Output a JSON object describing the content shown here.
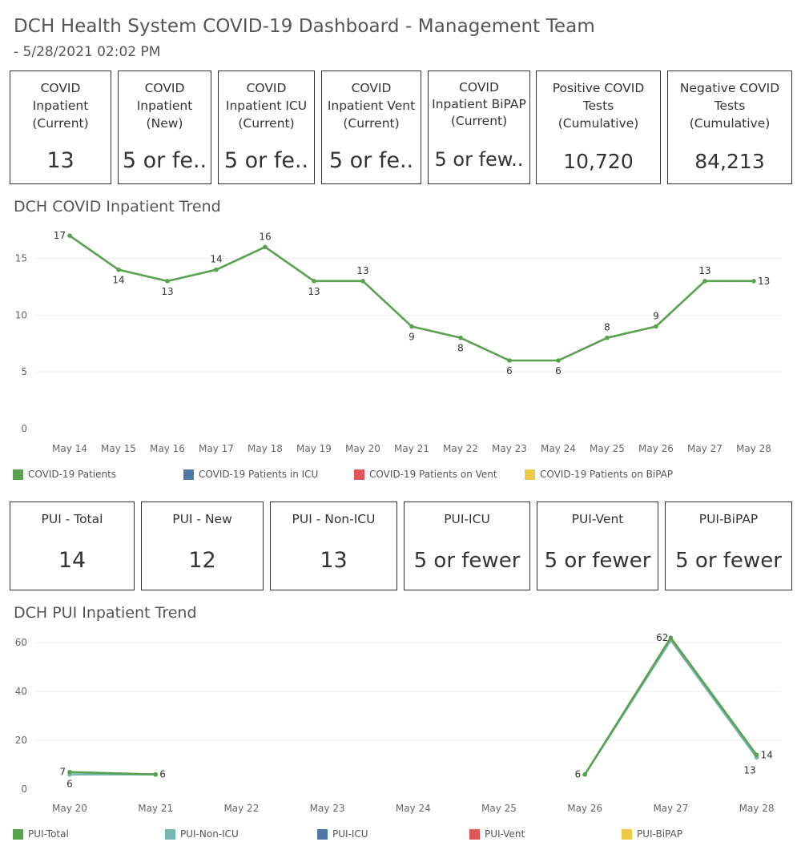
{
  "header": {
    "title": "DCH Health System COVID-19 Dashboard - Management Team",
    "subtitle": "- 5/28/2021 02:02 PM"
  },
  "covid_kpis": [
    {
      "label": "COVID\nInpatient\n(Current)",
      "value": "13"
    },
    {
      "label": "COVID\nInpatient\n(New)",
      "value": "5 or fe.."
    },
    {
      "label": "COVID\nInpatient ICU\n(Current)",
      "value": "5 or fe.."
    },
    {
      "label": "COVID\nInpatient Vent\n(Current)",
      "value": "5 or fe.."
    },
    {
      "label": "COVID\nInpatient BiPAP\n(Current)",
      "value": "5 or few.."
    },
    {
      "label": "Positive COVID\nTests\n(Cumulative)",
      "value": "10,720"
    },
    {
      "label": "Negative COVID\nTests\n(Cumulative)",
      "value": "84,213"
    }
  ],
  "pui_kpis": [
    {
      "label": "PUI - Total",
      "value": "14"
    },
    {
      "label": "PUI - New",
      "value": "12"
    },
    {
      "label": "PUI - Non-ICU",
      "value": "13"
    },
    {
      "label": "PUI-ICU",
      "value": "5 or fewer"
    },
    {
      "label": "PUI-Vent",
      "value": "5 or fewer"
    },
    {
      "label": "PUI-BiPAP",
      "value": "5 or fewer"
    }
  ],
  "chart_data": [
    {
      "type": "line",
      "title": "DCH COVID Inpatient Trend",
      "categories": [
        "May 14",
        "May 15",
        "May 16",
        "May 17",
        "May 18",
        "May 19",
        "May 20",
        "May 21",
        "May 22",
        "May 23",
        "May 24",
        "May 25",
        "May 26",
        "May 27",
        "May 28"
      ],
      "series": [
        {
          "name": "COVID-19 Patients",
          "color": "#59a14f",
          "values": [
            17,
            14,
            13,
            14,
            16,
            13,
            13,
            9,
            8,
            6,
            6,
            8,
            9,
            13,
            13
          ]
        }
      ],
      "legend": [
        {
          "name": "COVID-19 Patients",
          "color": "#59a14f"
        },
        {
          "name": "COVID-19 Patients in ICU",
          "color": "#4e79a7"
        },
        {
          "name": "COVID-19 Patients on Vent",
          "color": "#e15759"
        },
        {
          "name": "COVID-19 Patients on BiPAP",
          "color": "#edc948"
        }
      ],
      "yticks": [
        0,
        5,
        10,
        15
      ],
      "ylim": [
        0,
        18
      ],
      "legend_position": "bottom",
      "grid": true
    },
    {
      "type": "line",
      "title": "DCH PUI Inpatient Trend",
      "categories": [
        "May 20",
        "May 21",
        "May 22",
        "May 23",
        "May 24",
        "May 25",
        "May 26",
        "May 27",
        "May 28"
      ],
      "series": [
        {
          "name": "PUI-Non-ICU",
          "color": "#76b7b2",
          "segments": [
            [
              {
                "i": 0,
                "v": 6
              },
              {
                "i": 1,
                "v": 6
              }
            ],
            [
              {
                "i": 6,
                "v": 6
              },
              {
                "i": 7,
                "v": 61
              },
              {
                "i": 8,
                "v": 13
              }
            ]
          ]
        },
        {
          "name": "PUI-Total",
          "color": "#59a14f",
          "segments": [
            [
              {
                "i": 0,
                "v": 7
              },
              {
                "i": 1,
                "v": 6
              }
            ],
            [
              {
                "i": 6,
                "v": 6
              },
              {
                "i": 7,
                "v": 62
              },
              {
                "i": 8,
                "v": 14
              }
            ]
          ]
        }
      ],
      "labels": [
        {
          "i": 0,
          "v": 7,
          "text": "7",
          "series": "PUI-Total"
        },
        {
          "i": 0,
          "v": 6,
          "text": "6",
          "series": "PUI-Non-ICU"
        },
        {
          "i": 1,
          "v": 6,
          "text": "6",
          "series": "PUI-Total"
        },
        {
          "i": 6,
          "v": 6,
          "text": "6",
          "series": "PUI-Total"
        },
        {
          "i": 7,
          "v": 62,
          "text": "62",
          "series": "PUI-Total"
        },
        {
          "i": 8,
          "v": 14,
          "text": "14",
          "series": "PUI-Total"
        },
        {
          "i": 8,
          "v": 13,
          "text": "13",
          "series": "PUI-Non-ICU"
        }
      ],
      "legend": [
        {
          "name": "PUI-Total",
          "color": "#59a14f"
        },
        {
          "name": "PUI-Non-ICU",
          "color": "#76b7b2"
        },
        {
          "name": "PUI-ICU",
          "color": "#4e79a7"
        },
        {
          "name": "PUI-Vent",
          "color": "#e15759"
        },
        {
          "name": "PUI-BiPAP",
          "color": "#edc948"
        }
      ],
      "yticks": [
        0,
        20,
        40,
        60
      ],
      "ylim": [
        0,
        64
      ],
      "legend_position": "bottom",
      "grid": true
    }
  ]
}
